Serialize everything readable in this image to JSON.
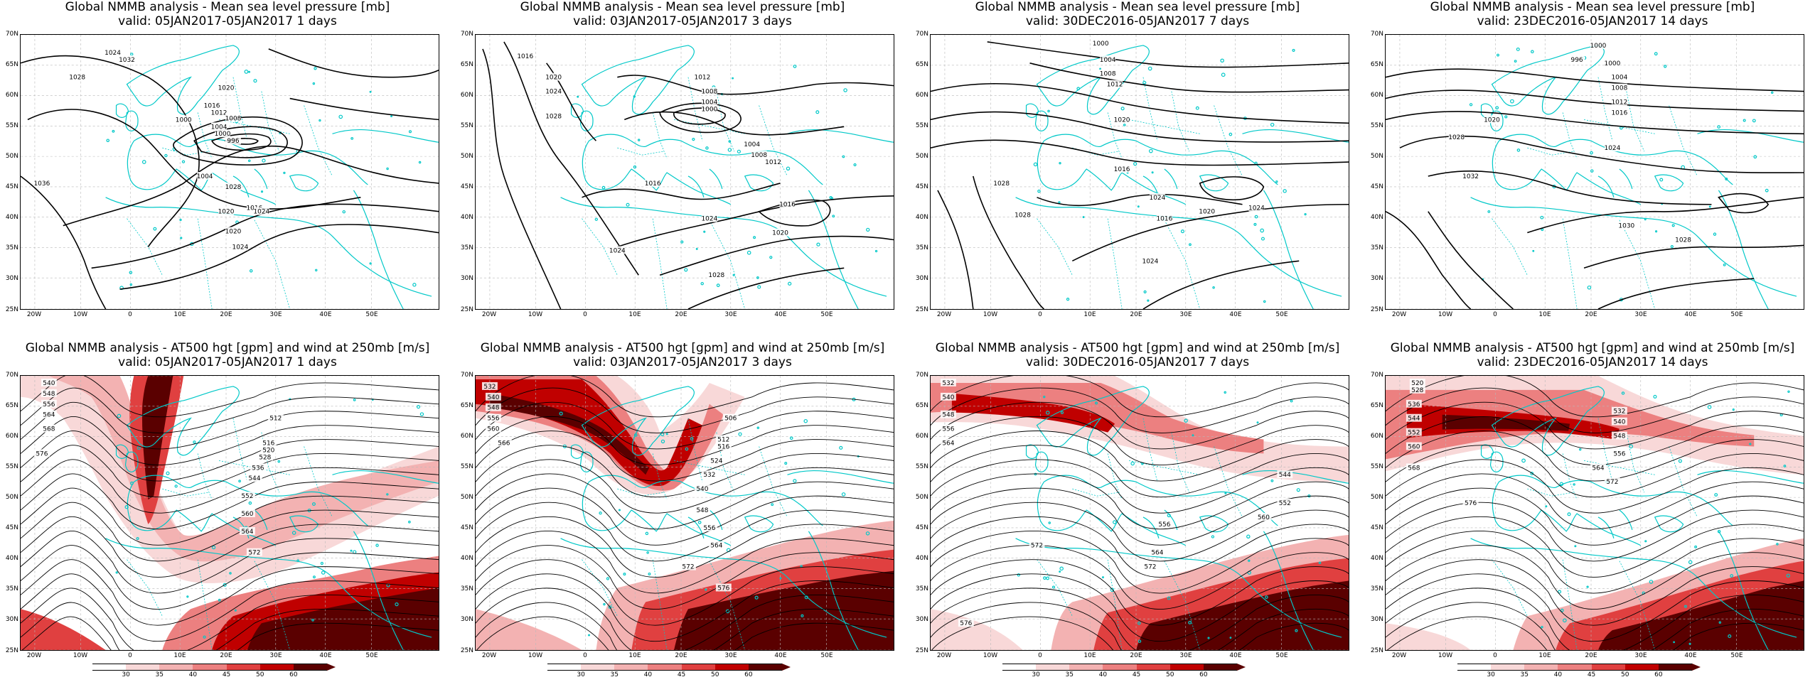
{
  "colors": {
    "coast": "#00c8c8",
    "contour": "#000000",
    "wind": [
      "#ffffff",
      "#f8d8d8",
      "#f3b2b2",
      "#ec8080",
      "#e04040",
      "#c00000",
      "#5a0000"
    ]
  },
  "axes": {
    "lat_labels": [
      "70N",
      "65N",
      "60N",
      "55N",
      "50N",
      "45N",
      "40N",
      "35N",
      "30N",
      "25N"
    ],
    "lon_labels": [
      "20W",
      "10W",
      "0",
      "10E",
      "20E",
      "30E",
      "40E",
      "50E"
    ]
  },
  "colorbar": {
    "ticks": [
      "30",
      "35",
      "40",
      "45",
      "50",
      "60"
    ]
  },
  "panels": [
    {
      "title": "Global NMMB analysis - Mean sea level pressure [mb]",
      "valid": "valid: 05JAN2017-05JAN2017  1 days",
      "contour_labels": [
        "1024",
        "1028",
        "1032",
        "1036",
        "1020",
        "1016",
        "1012",
        "1008",
        "1004",
        "1000",
        "996",
        "1000",
        "1004",
        "1020",
        "1024",
        "1028",
        "1016",
        "1020",
        "1024"
      ]
    },
    {
      "title": "Global NMMB analysis - Mean sea level pressure [mb]",
      "valid": "valid: 03JAN2017-05JAN2017  3 days",
      "contour_labels": [
        "1016",
        "1020",
        "1024",
        "1028",
        "1016",
        "1012",
        "1008",
        "1004",
        "1000",
        "1004",
        "1008",
        "1012",
        "1016",
        "1020",
        "1024",
        "1024",
        "1028"
      ]
    },
    {
      "title": "Global NMMB analysis - Mean sea level pressure [mb]",
      "valid": "valid: 30DEC2016-05JAN2017  7 days",
      "contour_labels": [
        "1000",
        "1004",
        "1008",
        "1012",
        "1016",
        "1020",
        "1024",
        "1028",
        "1016",
        "1020",
        "1024",
        "1024",
        "1028"
      ]
    },
    {
      "title": "Global NMMB analysis - Mean sea level pressure [mb]",
      "valid": "valid: 23DEC2016-05JAN2017  14 days",
      "contour_labels": [
        "1000",
        "996",
        "1000",
        "1004",
        "1008",
        "1012",
        "1016",
        "1020",
        "1024",
        "1028",
        "1032",
        "1030",
        "1028"
      ]
    },
    {
      "title": "Global NMMB analysis - AT500 hgt [gpm] and wind at 250mb [m/s]",
      "valid": "valid: 05JAN2017-05JAN2017  1 days",
      "contour_labels": [
        "540",
        "548",
        "556",
        "564",
        "568",
        "576",
        "512",
        "516",
        "520",
        "528",
        "536",
        "544",
        "552",
        "560",
        "564",
        "572"
      ]
    },
    {
      "title": "Global NMMB analysis - AT500 hgt [gpm] and wind at 250mb [m/s]",
      "valid": "valid: 03JAN2017-05JAN2017  3 days",
      "contour_labels": [
        "532",
        "540",
        "548",
        "556",
        "560",
        "566",
        "506",
        "512",
        "516",
        "524",
        "532",
        "540",
        "548",
        "556",
        "564",
        "572",
        "576"
      ]
    },
    {
      "title": "Global NMMB analysis - AT500 hgt [gpm] and wind at 250mb [m/s]",
      "valid": "valid: 30DEC2016-05JAN2017  7 days",
      "contour_labels": [
        "532",
        "540",
        "548",
        "556",
        "564",
        "572",
        "576",
        "556",
        "564",
        "572",
        "544",
        "552",
        "560"
      ]
    },
    {
      "title": "Global NMMB analysis - AT500 hgt [gpm] and wind at 250mb [m/s]",
      "valid": "valid: 23DEC2016-05JAN2017  14 days",
      "contour_labels": [
        "520",
        "528",
        "536",
        "544",
        "552",
        "560",
        "568",
        "576",
        "532",
        "540",
        "548",
        "556",
        "564",
        "572"
      ]
    }
  ]
}
